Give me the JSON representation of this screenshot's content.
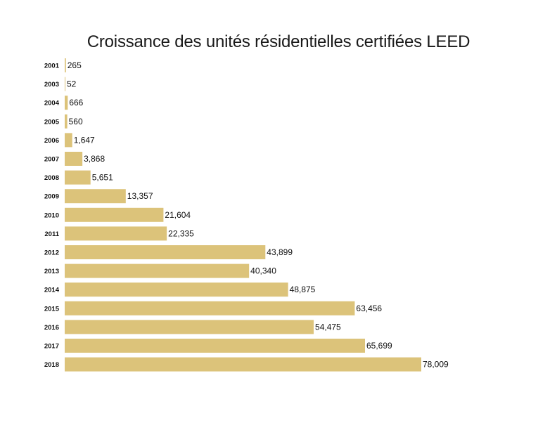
{
  "chart_data": {
    "type": "bar",
    "orientation": "horizontal",
    "title": "Croissance des unités résidentielles certifiées LEED",
    "categories": [
      "2001",
      "2003",
      "2004",
      "2005",
      "2006",
      "2007",
      "2008",
      "2009",
      "2010",
      "2011",
      "2012",
      "2013",
      "2014",
      "2015",
      "2016",
      "2017",
      "2018"
    ],
    "values": [
      265,
      52,
      666,
      560,
      1647,
      3868,
      5651,
      13357,
      21604,
      22335,
      43899,
      40340,
      48875,
      63456,
      54475,
      65699,
      78009
    ],
    "value_labels": [
      "265",
      "52",
      "666",
      "560",
      "1,647",
      "3,868",
      "5,651",
      "13,357",
      "21,604",
      "22,335",
      "43,899",
      "40,340",
      "48,875",
      "63,456",
      "54,475",
      "65,699",
      "78,009"
    ],
    "xlabel": "",
    "ylabel": "",
    "xlim": [
      0,
      78009
    ],
    "grid": false,
    "legend": "none",
    "bar_color": "#dcc37a"
  }
}
